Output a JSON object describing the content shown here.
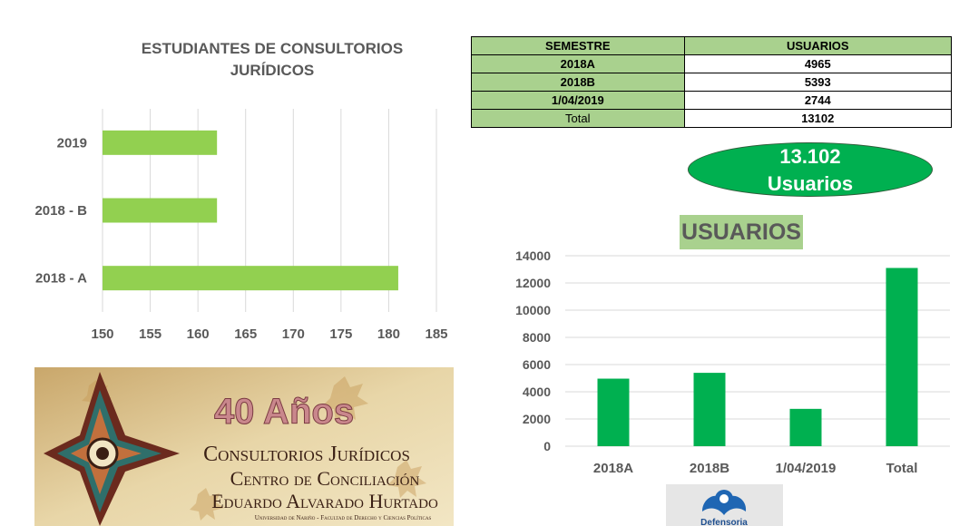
{
  "chart_data": [
    {
      "type": "bar",
      "orientation": "horizontal",
      "title": "ESTUDIANTES DE CONSULTORIOS JURÍDICOS",
      "categories": [
        "2019",
        "2018 - B",
        "2018 - A"
      ],
      "values": [
        162,
        162,
        181
      ],
      "xlim": [
        150,
        185
      ],
      "xticks": [
        "150",
        "155",
        "160",
        "165",
        "170",
        "175",
        "180",
        "185"
      ],
      "grid": true,
      "color": "#92d050"
    },
    {
      "type": "bar",
      "title": "USUARIOS",
      "categories": [
        "2018A",
        "2018B",
        "1/04/2019",
        "Total"
      ],
      "values": [
        4965,
        5393,
        2744,
        13102
      ],
      "ylim": [
        0,
        14000
      ],
      "yticks": [
        "0",
        "2000",
        "4000",
        "6000",
        "8000",
        "10000",
        "12000",
        "14000"
      ],
      "grid": true,
      "color": "#00b050"
    }
  ],
  "table": {
    "headers": [
      "SEMESTRE",
      "USUARIOS"
    ],
    "rows": [
      {
        "semestre": "2018A",
        "usuarios": "4965"
      },
      {
        "semestre": "2018B",
        "usuarios": "5393"
      },
      {
        "semestre": "1/04/2019",
        "usuarios": "2744"
      },
      {
        "semestre": "Total",
        "usuarios": "13102"
      }
    ]
  },
  "highlight": {
    "number": "13.102",
    "label": "Usuarios"
  },
  "banner": {
    "heading": "40 Años",
    "line1": "Consultorios Jurídicos",
    "line2": "Centro de Conciliación",
    "line3": "Eduardo Alvarado Hurtado",
    "line4": "Universidad de Nariño - Facultad de Derecho y Ciencias Políticas"
  },
  "defensoria_logo": {
    "text": "Defensoria"
  },
  "colors": {
    "bar_light_green": "#92d050",
    "bar_green": "#00b050",
    "header_green": "#a9d18e",
    "title_gray": "#595959"
  }
}
